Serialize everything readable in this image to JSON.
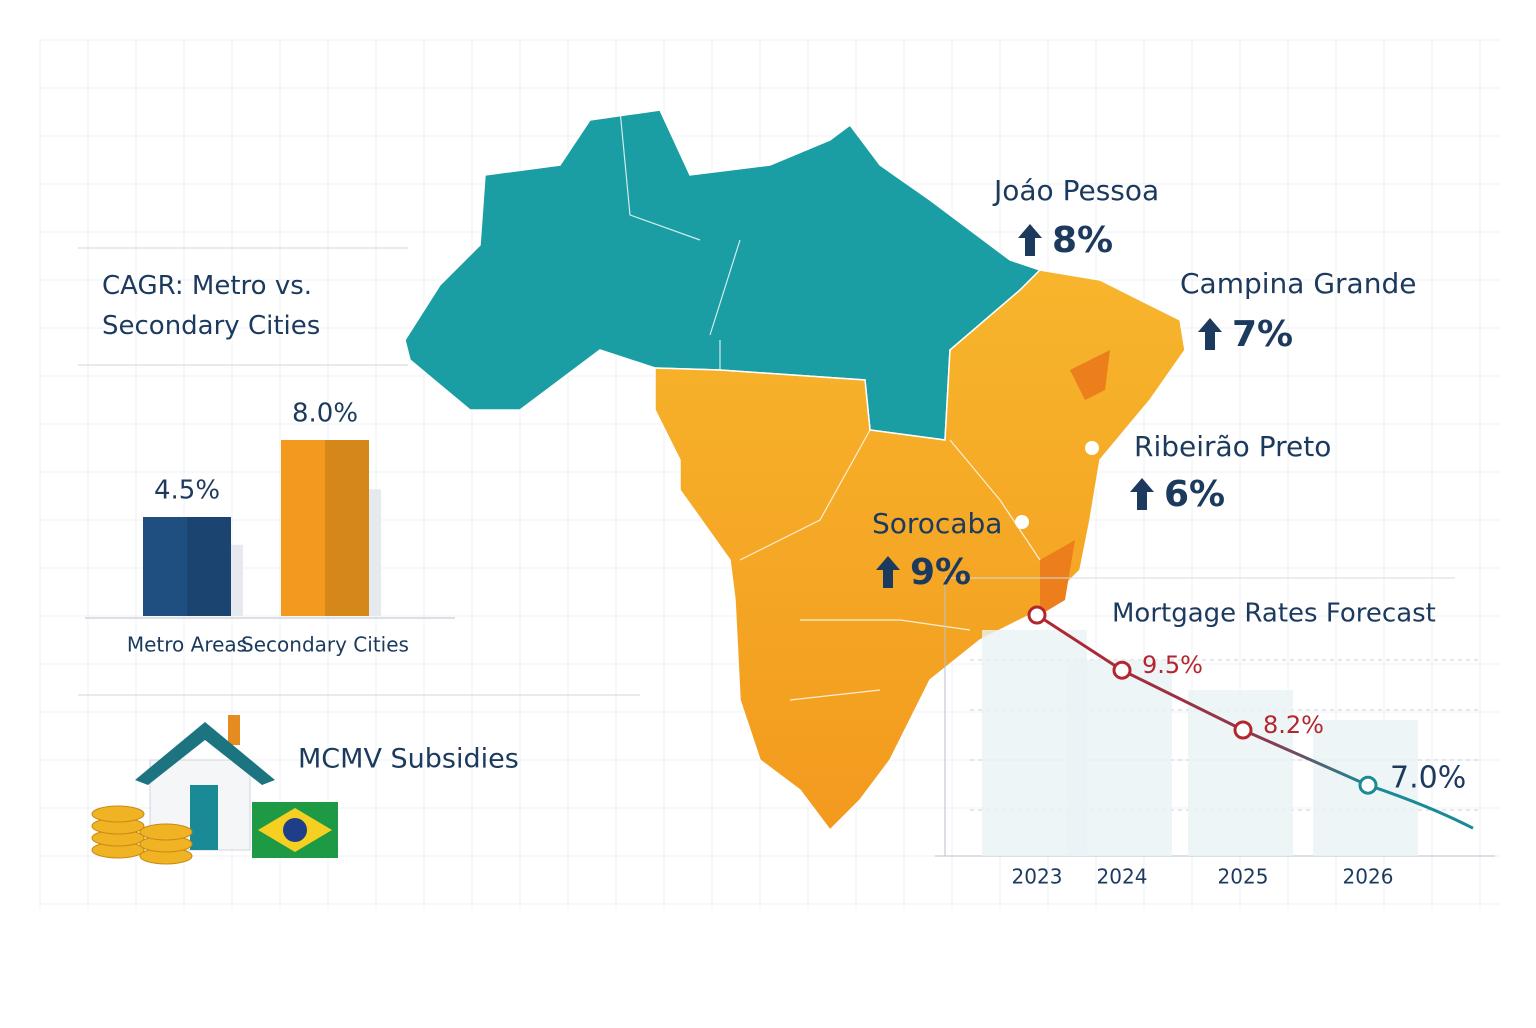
{
  "chart_data": [
    {
      "type": "bar",
      "title": "CAGR: Metro vs. Secondary Cities",
      "categories": [
        "Metro Areas",
        "Secondary Cities"
      ],
      "values": [
        4.5,
        8.0
      ],
      "value_labels": [
        "4.5%",
        "8.0%"
      ],
      "colors": [
        "#1f4e80",
        "#f39a1e"
      ]
    },
    {
      "type": "line",
      "title": "Mortgage Rates Forecast",
      "categories": [
        "2023",
        "2024",
        "2025",
        "2026"
      ],
      "values": [
        10.7,
        9.5,
        8.2,
        7.0
      ],
      "value_labels": [
        null,
        "9.5%",
        "8.2%",
        "7.0%"
      ],
      "color": "#b3262e",
      "end_color": "#1a8a96"
    }
  ],
  "map": {
    "cities": [
      {
        "name": "Joáo Pessoa",
        "growth": "8%"
      },
      {
        "name": "Campina Grande",
        "growth": "7%"
      },
      {
        "name": "Ribeirão Preto",
        "growth": "6%"
      },
      {
        "name": "Sorocaba",
        "growth": "9%"
      }
    ]
  },
  "subsidies": {
    "label": "MCMV Subsidies"
  }
}
